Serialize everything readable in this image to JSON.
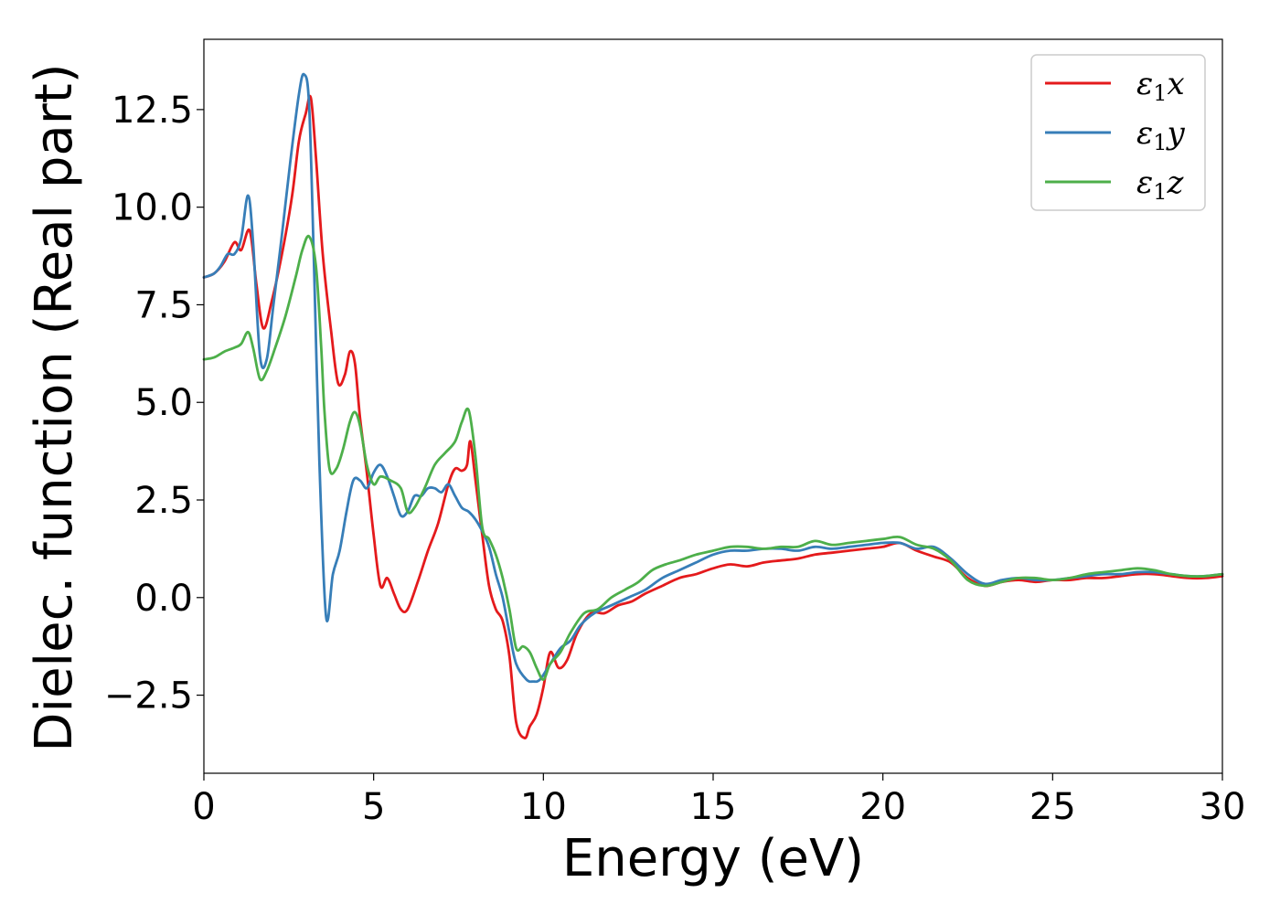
{
  "chart_data": {
    "type": "line",
    "title": "",
    "xlabel": "Energy (eV)",
    "ylabel": "Dielec. function (Real part)",
    "xlim": [
      0,
      30
    ],
    "ylim": [
      -4.5,
      14.3
    ],
    "x_ticks": [
      0,
      5,
      10,
      15,
      20,
      25,
      30
    ],
    "x_tick_labels": [
      "0",
      "5",
      "10",
      "15",
      "20",
      "25",
      "30"
    ],
    "y_ticks": [
      -2.5,
      0.0,
      2.5,
      5.0,
      7.5,
      10.0,
      12.5
    ],
    "y_tick_labels": [
      "−2.5",
      "0.0",
      "2.5",
      "5.0",
      "7.5",
      "10.0",
      "12.5"
    ],
    "grid": false,
    "legend_position": "top-right",
    "series": [
      {
        "name": "ε₁x",
        "legend_base": "ε",
        "legend_sub": "1",
        "legend_suffix": "x",
        "color": "#e41a1c",
        "points": [
          [
            0,
            8.2
          ],
          [
            0.3,
            8.3
          ],
          [
            0.6,
            8.6
          ],
          [
            0.9,
            9.1
          ],
          [
            1.1,
            8.9
          ],
          [
            1.35,
            9.4
          ],
          [
            1.55,
            8.0
          ],
          [
            1.75,
            6.9
          ],
          [
            2.0,
            7.6
          ],
          [
            2.3,
            8.8
          ],
          [
            2.6,
            10.3
          ],
          [
            2.8,
            11.7
          ],
          [
            3.0,
            12.4
          ],
          [
            3.15,
            12.8
          ],
          [
            3.3,
            11.3
          ],
          [
            3.5,
            8.8
          ],
          [
            3.75,
            6.8
          ],
          [
            3.95,
            5.5
          ],
          [
            4.15,
            5.7
          ],
          [
            4.3,
            6.3
          ],
          [
            4.45,
            6.0
          ],
          [
            4.6,
            4.6
          ],
          [
            4.8,
            3.2
          ],
          [
            5.0,
            1.6
          ],
          [
            5.2,
            0.3
          ],
          [
            5.4,
            0.5
          ],
          [
            5.6,
            0.1
          ],
          [
            5.8,
            -0.3
          ],
          [
            6.0,
            -0.3
          ],
          [
            6.3,
            0.4
          ],
          [
            6.6,
            1.2
          ],
          [
            6.9,
            1.9
          ],
          [
            7.2,
            2.9
          ],
          [
            7.4,
            3.3
          ],
          [
            7.6,
            3.25
          ],
          [
            7.75,
            3.4
          ],
          [
            7.85,
            4.0
          ],
          [
            8.0,
            3.0
          ],
          [
            8.2,
            1.6
          ],
          [
            8.4,
            0.3
          ],
          [
            8.6,
            -0.3
          ],
          [
            8.8,
            -0.6
          ],
          [
            9.0,
            -1.5
          ],
          [
            9.2,
            -3.2
          ],
          [
            9.45,
            -3.6
          ],
          [
            9.6,
            -3.3
          ],
          [
            9.8,
            -3.0
          ],
          [
            10.0,
            -2.3
          ],
          [
            10.2,
            -1.4
          ],
          [
            10.45,
            -1.8
          ],
          [
            10.7,
            -1.6
          ],
          [
            11.0,
            -0.9
          ],
          [
            11.4,
            -0.4
          ],
          [
            11.8,
            -0.4
          ],
          [
            12.2,
            -0.2
          ],
          [
            12.6,
            -0.1
          ],
          [
            13.0,
            0.1
          ],
          [
            13.5,
            0.3
          ],
          [
            14.0,
            0.5
          ],
          [
            14.5,
            0.6
          ],
          [
            15.0,
            0.75
          ],
          [
            15.5,
            0.85
          ],
          [
            16.0,
            0.8
          ],
          [
            16.5,
            0.9
          ],
          [
            17.0,
            0.95
          ],
          [
            17.5,
            1.0
          ],
          [
            18.0,
            1.1
          ],
          [
            18.5,
            1.15
          ],
          [
            19.0,
            1.2
          ],
          [
            19.5,
            1.25
          ],
          [
            20.0,
            1.3
          ],
          [
            20.5,
            1.4
          ],
          [
            21.0,
            1.2
          ],
          [
            21.5,
            1.05
          ],
          [
            22.0,
            0.9
          ],
          [
            22.5,
            0.5
          ],
          [
            23.0,
            0.3
          ],
          [
            23.5,
            0.4
          ],
          [
            24.0,
            0.45
          ],
          [
            24.5,
            0.4
          ],
          [
            25.0,
            0.45
          ],
          [
            25.5,
            0.45
          ],
          [
            26.0,
            0.5
          ],
          [
            26.5,
            0.5
          ],
          [
            27.0,
            0.55
          ],
          [
            27.5,
            0.6
          ],
          [
            28.0,
            0.6
          ],
          [
            28.5,
            0.55
          ],
          [
            29.0,
            0.5
          ],
          [
            29.5,
            0.5
          ],
          [
            30.0,
            0.55
          ]
        ]
      },
      {
        "name": "ε₁y",
        "legend_base": "ε",
        "legend_sub": "1",
        "legend_suffix": "y",
        "color": "#377eb8",
        "points": [
          [
            0,
            8.2
          ],
          [
            0.3,
            8.3
          ],
          [
            0.5,
            8.5
          ],
          [
            0.7,
            8.8
          ],
          [
            0.9,
            8.8
          ],
          [
            1.1,
            9.2
          ],
          [
            1.3,
            10.3
          ],
          [
            1.45,
            9.1
          ],
          [
            1.65,
            6.2
          ],
          [
            1.85,
            6.1
          ],
          [
            2.05,
            7.5
          ],
          [
            2.3,
            9.3
          ],
          [
            2.55,
            11.2
          ],
          [
            2.8,
            12.9
          ],
          [
            2.95,
            13.4
          ],
          [
            3.1,
            12.6
          ],
          [
            3.25,
            8.3
          ],
          [
            3.4,
            3.5
          ],
          [
            3.6,
            -0.5
          ],
          [
            3.8,
            0.6
          ],
          [
            4.0,
            1.2
          ],
          [
            4.2,
            2.2
          ],
          [
            4.4,
            3.0
          ],
          [
            4.6,
            3.0
          ],
          [
            4.8,
            2.8
          ],
          [
            5.0,
            3.2
          ],
          [
            5.2,
            3.4
          ],
          [
            5.4,
            3.1
          ],
          [
            5.6,
            2.6
          ],
          [
            5.8,
            2.1
          ],
          [
            6.0,
            2.2
          ],
          [
            6.2,
            2.6
          ],
          [
            6.4,
            2.6
          ],
          [
            6.6,
            2.8
          ],
          [
            6.8,
            2.8
          ],
          [
            7.0,
            2.7
          ],
          [
            7.2,
            2.9
          ],
          [
            7.4,
            2.6
          ],
          [
            7.6,
            2.3
          ],
          [
            7.8,
            2.2
          ],
          [
            8.0,
            2.0
          ],
          [
            8.2,
            1.7
          ],
          [
            8.4,
            1.3
          ],
          [
            8.6,
            0.6
          ],
          [
            8.8,
            0.0
          ],
          [
            9.0,
            -0.9
          ],
          [
            9.2,
            -1.7
          ],
          [
            9.5,
            -2.1
          ],
          [
            9.7,
            -2.15
          ],
          [
            9.9,
            -2.1
          ],
          [
            10.2,
            -1.7
          ],
          [
            10.5,
            -1.3
          ],
          [
            10.8,
            -1.1
          ],
          [
            11.1,
            -0.7
          ],
          [
            11.5,
            -0.4
          ],
          [
            12.0,
            -0.2
          ],
          [
            12.5,
            0.0
          ],
          [
            13.0,
            0.2
          ],
          [
            13.5,
            0.5
          ],
          [
            14.0,
            0.7
          ],
          [
            14.5,
            0.9
          ],
          [
            15.0,
            1.1
          ],
          [
            15.5,
            1.2
          ],
          [
            16.0,
            1.2
          ],
          [
            16.5,
            1.25
          ],
          [
            17.0,
            1.25
          ],
          [
            17.5,
            1.2
          ],
          [
            18.0,
            1.3
          ],
          [
            18.5,
            1.25
          ],
          [
            19.0,
            1.3
          ],
          [
            19.5,
            1.35
          ],
          [
            20.0,
            1.4
          ],
          [
            20.5,
            1.4
          ],
          [
            21.0,
            1.25
          ],
          [
            21.5,
            1.3
          ],
          [
            22.0,
            1.0
          ],
          [
            22.5,
            0.6
          ],
          [
            23.0,
            0.35
          ],
          [
            23.5,
            0.45
          ],
          [
            24.0,
            0.5
          ],
          [
            24.5,
            0.45
          ],
          [
            25.0,
            0.45
          ],
          [
            25.5,
            0.5
          ],
          [
            26.0,
            0.55
          ],
          [
            26.5,
            0.6
          ],
          [
            27.0,
            0.6
          ],
          [
            27.5,
            0.65
          ],
          [
            28.0,
            0.65
          ],
          [
            28.5,
            0.6
          ],
          [
            29.0,
            0.55
          ],
          [
            29.5,
            0.55
          ],
          [
            30.0,
            0.6
          ]
        ]
      },
      {
        "name": "ε₁z",
        "legend_base": "ε",
        "legend_sub": "1",
        "legend_suffix": "z",
        "color": "#4daf4a",
        "points": [
          [
            0,
            6.1
          ],
          [
            0.3,
            6.15
          ],
          [
            0.6,
            6.3
          ],
          [
            0.9,
            6.4
          ],
          [
            1.1,
            6.5
          ],
          [
            1.3,
            6.8
          ],
          [
            1.45,
            6.4
          ],
          [
            1.65,
            5.6
          ],
          [
            1.85,
            5.8
          ],
          [
            2.1,
            6.4
          ],
          [
            2.4,
            7.2
          ],
          [
            2.7,
            8.2
          ],
          [
            2.9,
            8.9
          ],
          [
            3.1,
            9.25
          ],
          [
            3.3,
            8.5
          ],
          [
            3.45,
            6.5
          ],
          [
            3.55,
            4.8
          ],
          [
            3.7,
            3.3
          ],
          [
            3.9,
            3.3
          ],
          [
            4.1,
            3.8
          ],
          [
            4.3,
            4.5
          ],
          [
            4.45,
            4.75
          ],
          [
            4.6,
            4.4
          ],
          [
            4.8,
            3.4
          ],
          [
            5.0,
            2.9
          ],
          [
            5.2,
            3.1
          ],
          [
            5.5,
            3.0
          ],
          [
            5.8,
            2.8
          ],
          [
            6.0,
            2.2
          ],
          [
            6.2,
            2.3
          ],
          [
            6.5,
            2.8
          ],
          [
            6.8,
            3.4
          ],
          [
            7.1,
            3.7
          ],
          [
            7.4,
            4.0
          ],
          [
            7.6,
            4.5
          ],
          [
            7.8,
            4.8
          ],
          [
            8.0,
            3.6
          ],
          [
            8.2,
            1.8
          ],
          [
            8.4,
            1.5
          ],
          [
            8.6,
            1.1
          ],
          [
            8.8,
            0.5
          ],
          [
            9.0,
            -0.3
          ],
          [
            9.2,
            -1.3
          ],
          [
            9.4,
            -1.25
          ],
          [
            9.6,
            -1.4
          ],
          [
            9.8,
            -1.8
          ],
          [
            10.0,
            -2.1
          ],
          [
            10.2,
            -1.7
          ],
          [
            10.5,
            -1.4
          ],
          [
            10.8,
            -0.9
          ],
          [
            11.2,
            -0.4
          ],
          [
            11.6,
            -0.3
          ],
          [
            12.0,
            0.0
          ],
          [
            12.4,
            0.2
          ],
          [
            12.8,
            0.4
          ],
          [
            13.2,
            0.7
          ],
          [
            13.6,
            0.85
          ],
          [
            14.0,
            0.95
          ],
          [
            14.5,
            1.1
          ],
          [
            15.0,
            1.2
          ],
          [
            15.5,
            1.3
          ],
          [
            16.0,
            1.3
          ],
          [
            16.5,
            1.25
          ],
          [
            17.0,
            1.3
          ],
          [
            17.5,
            1.3
          ],
          [
            18.0,
            1.45
          ],
          [
            18.5,
            1.35
          ],
          [
            19.0,
            1.4
          ],
          [
            19.5,
            1.45
          ],
          [
            20.0,
            1.5
          ],
          [
            20.5,
            1.55
          ],
          [
            21.0,
            1.35
          ],
          [
            21.5,
            1.25
          ],
          [
            22.0,
            0.95
          ],
          [
            22.5,
            0.45
          ],
          [
            23.0,
            0.3
          ],
          [
            23.5,
            0.4
          ],
          [
            24.0,
            0.5
          ],
          [
            24.5,
            0.5
          ],
          [
            25.0,
            0.45
          ],
          [
            25.5,
            0.5
          ],
          [
            26.0,
            0.6
          ],
          [
            26.5,
            0.65
          ],
          [
            27.0,
            0.7
          ],
          [
            27.5,
            0.75
          ],
          [
            28.0,
            0.7
          ],
          [
            28.5,
            0.6
          ],
          [
            29.0,
            0.55
          ],
          [
            29.5,
            0.55
          ],
          [
            30.0,
            0.6
          ]
        ]
      }
    ]
  }
}
